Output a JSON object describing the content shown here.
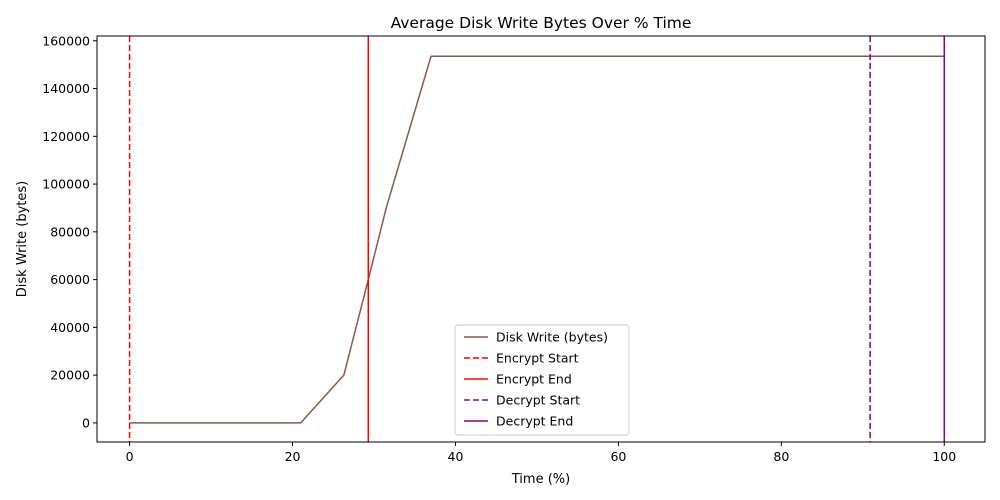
{
  "chart_data": {
    "type": "line",
    "title": "Average Disk Write Bytes Over % Time",
    "xlabel": "Time (%)",
    "ylabel": "Disk Write (bytes)",
    "xlim": [
      -4,
      105
    ],
    "ylim": [
      -8000,
      162000
    ],
    "xticks": [
      0,
      20,
      40,
      60,
      80,
      100
    ],
    "yticks": [
      0,
      20000,
      40000,
      60000,
      80000,
      100000,
      120000,
      140000,
      160000
    ],
    "grid": false,
    "legend_position": "lower-center",
    "series": [
      {
        "name": "Disk Write (bytes)",
        "color": "#8c564b",
        "style": "solid",
        "x": [
          0,
          5,
          10,
          15,
          21,
          26.3,
          29.3,
          31.5,
          37,
          45,
          60,
          80,
          90.9,
          100
        ],
        "y": [
          0,
          0,
          0,
          0,
          0,
          20000,
          60000,
          90000,
          153500,
          153500,
          153500,
          153500,
          153500,
          153500
        ]
      }
    ],
    "vlines": [
      {
        "name": "Encrypt Start",
        "x": 0,
        "color": "#ff0000",
        "style": "dashed"
      },
      {
        "name": "Encrypt End",
        "x": 29.3,
        "color": "#ff0000",
        "style": "solid"
      },
      {
        "name": "Decrypt Start",
        "x": 90.9,
        "color": "#800080",
        "style": "dashed"
      },
      {
        "name": "Decrypt End",
        "x": 100,
        "color": "#800080",
        "style": "solid"
      }
    ]
  }
}
